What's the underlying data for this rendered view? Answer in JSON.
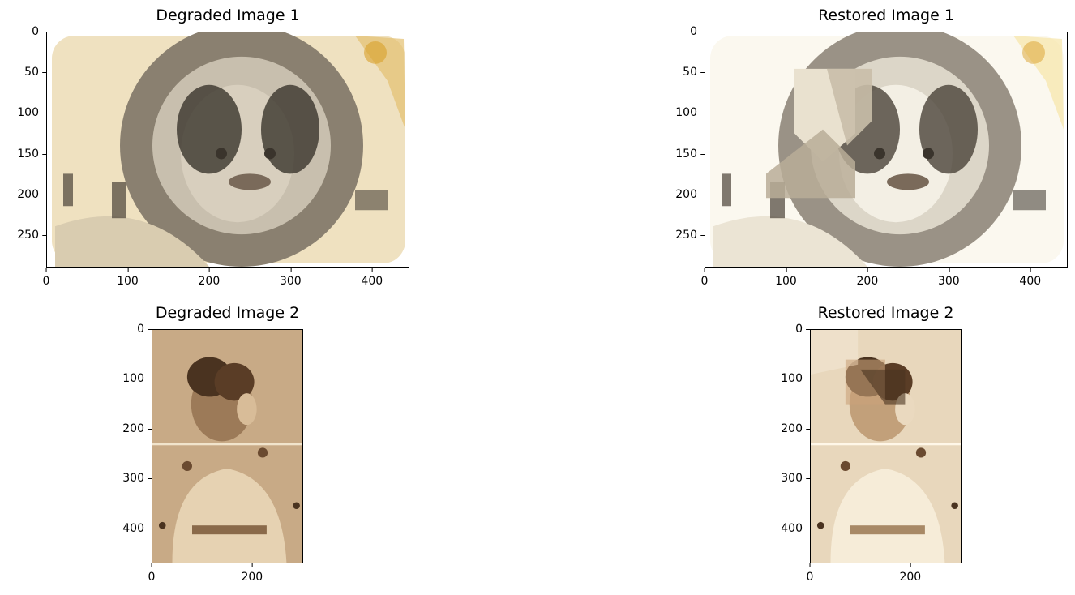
{
  "chart_data": [
    {
      "type": "image",
      "title": "Degraded Image 1",
      "xlim": [
        0,
        446
      ],
      "ylim": [
        290,
        0
      ],
      "xticks": [
        0,
        100,
        200,
        300,
        400
      ],
      "yticks": [
        0,
        50,
        100,
        150,
        200,
        250
      ],
      "image_kind": "degraded-1"
    },
    {
      "type": "image",
      "title": "Restored Image 1",
      "xlim": [
        0,
        446
      ],
      "ylim": [
        290,
        0
      ],
      "xticks": [
        0,
        100,
        200,
        300,
        400
      ],
      "yticks": [
        0,
        50,
        100,
        150,
        200,
        250
      ],
      "image_kind": "restored-1"
    },
    {
      "type": "image",
      "title": "Degraded Image 2",
      "xlim": [
        0,
        302
      ],
      "ylim": [
        470,
        0
      ],
      "xticks": [
        0,
        200
      ],
      "yticks": [
        0,
        100,
        200,
        300,
        400
      ],
      "image_kind": "degraded-2"
    },
    {
      "type": "image",
      "title": "Restored Image 2",
      "xlim": [
        0,
        302
      ],
      "ylim": [
        470,
        0
      ],
      "xticks": [
        0,
        200
      ],
      "yticks": [
        0,
        100,
        200,
        300,
        400
      ],
      "image_kind": "restored-2"
    }
  ]
}
